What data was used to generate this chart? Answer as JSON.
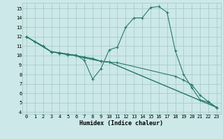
{
  "xlabel": "Humidex (Indice chaleur)",
  "bg_color": "#cce8e8",
  "grid_color": "#aacccc",
  "line_color": "#2a7a6a",
  "xlim": [
    -0.5,
    23.5
  ],
  "ylim": [
    3.8,
    15.6
  ],
  "xticks": [
    0,
    1,
    2,
    3,
    4,
    5,
    6,
    7,
    8,
    9,
    10,
    11,
    12,
    13,
    14,
    15,
    16,
    17,
    18,
    19,
    20,
    21,
    22,
    23
  ],
  "yticks": [
    4,
    5,
    6,
    7,
    8,
    9,
    10,
    11,
    12,
    13,
    14,
    15
  ],
  "line1_x": [
    0,
    1,
    2,
    3,
    4,
    5,
    6,
    7,
    8,
    9,
    10,
    11,
    12,
    13,
    14,
    15,
    16,
    17,
    18,
    19,
    20,
    21,
    22,
    23
  ],
  "line1_y": [
    12.0,
    11.5,
    11.0,
    10.4,
    10.3,
    10.15,
    10.05,
    9.5,
    7.5,
    8.6,
    10.6,
    10.9,
    13.0,
    14.0,
    14.0,
    15.1,
    15.2,
    14.6,
    10.5,
    8.0,
    6.6,
    5.3,
    5.05,
    4.5
  ],
  "line2_x": [
    0,
    1,
    2,
    3,
    4,
    5,
    6,
    7,
    9,
    10,
    11,
    18,
    19,
    20,
    21,
    22,
    23
  ],
  "line2_y": [
    12.0,
    11.5,
    11.0,
    10.4,
    10.25,
    10.1,
    10.0,
    9.75,
    9.4,
    9.3,
    9.25,
    7.8,
    7.4,
    6.9,
    5.8,
    5.1,
    4.5
  ],
  "line3_x": [
    0,
    3,
    4,
    5,
    6,
    7,
    8,
    9,
    10,
    23
  ],
  "line3_y": [
    12.0,
    10.4,
    10.25,
    10.1,
    10.0,
    9.85,
    9.7,
    9.4,
    9.3,
    4.5
  ],
  "line4_x": [
    0,
    3,
    4,
    5,
    9,
    10,
    23
  ],
  "line4_y": [
    12.0,
    10.4,
    10.3,
    10.15,
    9.4,
    9.3,
    4.5
  ]
}
